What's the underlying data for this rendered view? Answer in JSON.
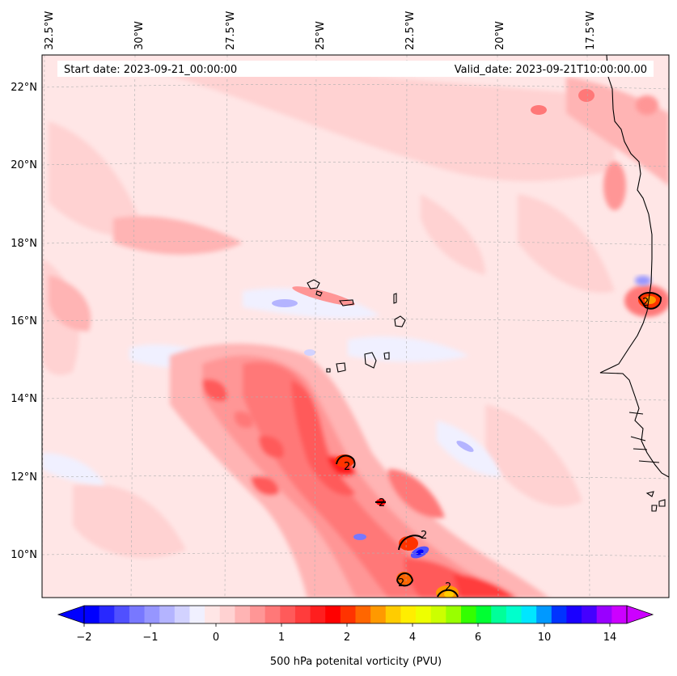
{
  "header": {
    "start_date": "Start date: 2023-09-21_00:00:00",
    "valid_date": "Valid_date: 2023-09-21T10:00:00.00"
  },
  "lon_labels": [
    "32.5°W",
    "30°W",
    "27.5°W",
    "25°W",
    "22.5°W",
    "20°W",
    "17.5°W"
  ],
  "lat_labels": [
    "22°N",
    "20°N",
    "18°N",
    "16°N",
    "14°N",
    "12°N",
    "10°N"
  ],
  "colorbar": {
    "title": "500 hPa potenital vorticity (PVU)",
    "tick_labels": [
      "−2",
      "−1",
      "0",
      "1",
      "2",
      "4",
      "6",
      "10",
      "14"
    ],
    "colors": [
      "#0000ff",
      "#2828ff",
      "#5050ff",
      "#7878ff",
      "#9696ff",
      "#b4b4ff",
      "#d2d2ff",
      "#f0f0ff",
      "#ffe6e6",
      "#ffd2d2",
      "#ffb4b4",
      "#ff9696",
      "#ff7878",
      "#ff5a5a",
      "#ff3c3c",
      "#ff1e1e",
      "#ff0000",
      "#ff3300",
      "#ff6600",
      "#ff9900",
      "#ffcc00",
      "#ffee00",
      "#eeff00",
      "#ccff00",
      "#99ff00",
      "#33ff00",
      "#00ff33",
      "#00ff99",
      "#00ffcc",
      "#00e6ff",
      "#0099ff",
      "#0033ff",
      "#1a00ff",
      "#4400ff",
      "#9900ff",
      "#cc00ff"
    ],
    "colors_meaning": "diverging PV palette blue (negative) to red (positive) to rainbow (high)"
  },
  "contour_labels": [
    "2",
    "2",
    "2",
    "2",
    "2",
    "2"
  ],
  "colors": {
    "background_pv": "#ffe6e6",
    "coast": "#000000"
  }
}
